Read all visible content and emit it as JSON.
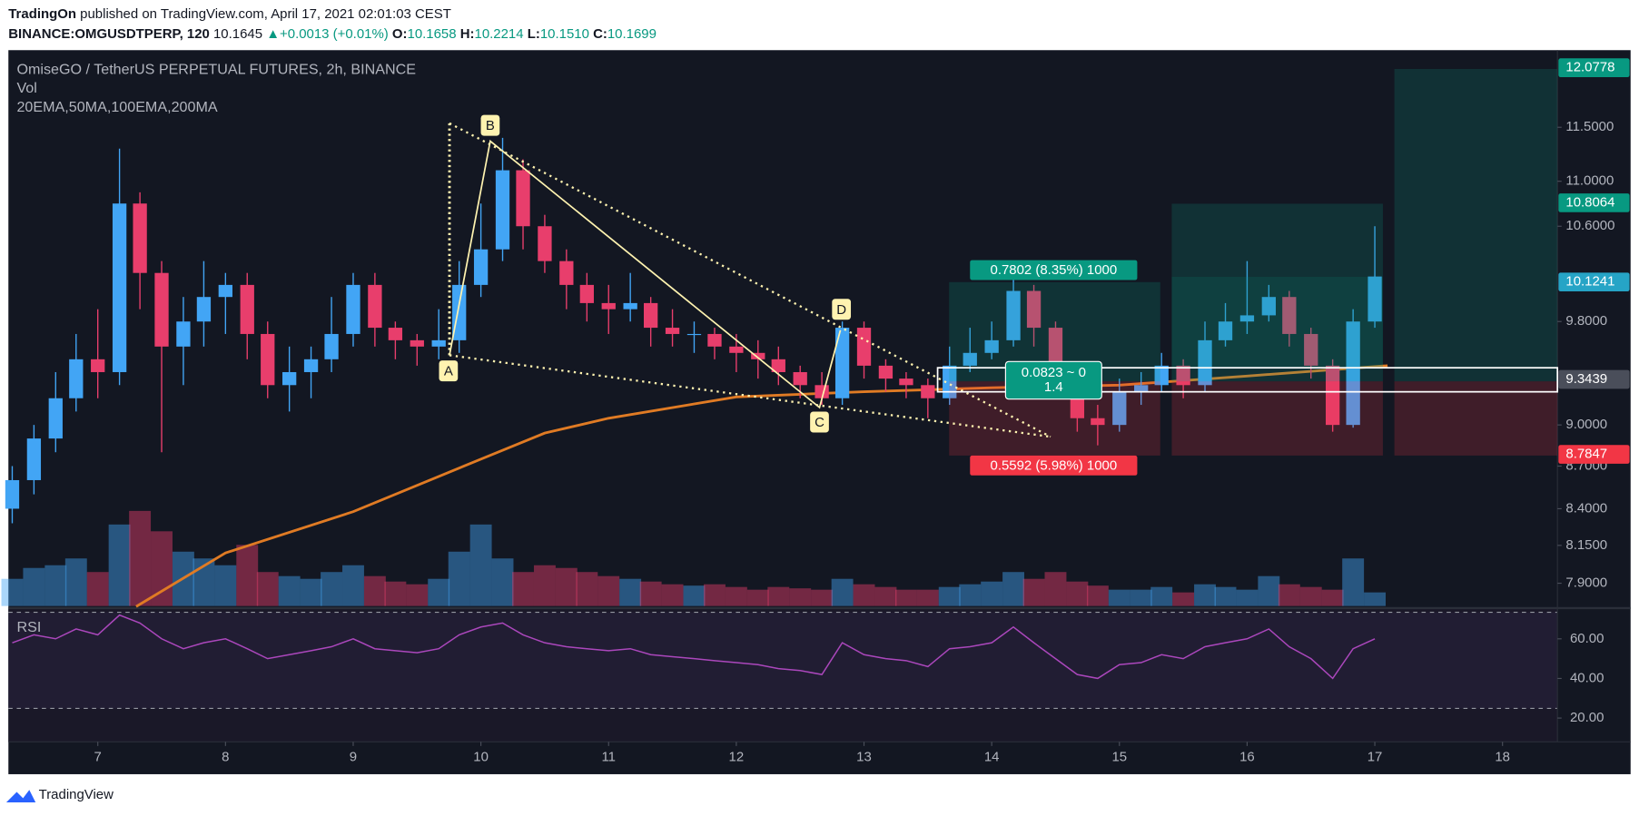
{
  "header": {
    "author": "TradingOn",
    "published": "published on TradingView.com, April 17, 2021 02:01:03 CEST",
    "symbol": "BINANCE:OMGUSDTPERP, 120",
    "last": "10.1645",
    "arrow": "▲",
    "change": "+0.0013 (+0.01%)",
    "o_label": "O:",
    "o": "10.1658",
    "h_label": "H:",
    "h": "10.2214",
    "l_label": "L:",
    "l": "10.1510",
    "c_label": "C:",
    "c": "10.1699"
  },
  "chart_data": [
    {
      "type": "candlestick",
      "title": "OmiseGO / TetherUS PERPETUAL FUTURES, 2h, BINANCE",
      "volume_label": "Vol",
      "ma_label": "20EMA,50MA,100EMA,200MA",
      "x": [
        6.33,
        6.5,
        6.67,
        6.83,
        7.0,
        7.17,
        7.33,
        7.5,
        7.67,
        7.83,
        8.0,
        8.17,
        8.33,
        8.5,
        8.67,
        8.83,
        9.0,
        9.17,
        9.33,
        9.5,
        9.67,
        9.83,
        10.0,
        10.17,
        10.33,
        10.5,
        10.67,
        10.83,
        11.0,
        11.17,
        11.33,
        11.5,
        11.67,
        11.83,
        12.0,
        12.17,
        12.33,
        12.5,
        12.67,
        12.83,
        13.0,
        13.17,
        13.33,
        13.5,
        13.67,
        13.83,
        14.0,
        14.17,
        14.33,
        14.5,
        14.67,
        14.83,
        15.0,
        15.17,
        15.33,
        15.5,
        15.67,
        15.83,
        16.0,
        16.17,
        16.33,
        16.5,
        16.67,
        16.83,
        17.0
      ],
      "open": [
        8.4,
        8.6,
        8.9,
        9.2,
        9.5,
        9.4,
        10.8,
        10.2,
        9.6,
        9.8,
        10.0,
        10.1,
        9.7,
        9.3,
        9.4,
        9.5,
        9.7,
        10.1,
        9.75,
        9.65,
        9.6,
        9.65,
        10.1,
        10.4,
        11.1,
        10.6,
        10.3,
        10.1,
        9.95,
        9.9,
        9.95,
        9.75,
        9.7,
        9.7,
        9.6,
        9.55,
        9.5,
        9.4,
        9.3,
        9.2,
        9.75,
        9.45,
        9.35,
        9.3,
        9.2,
        9.45,
        9.55,
        9.65,
        10.05,
        9.75,
        9.35,
        9.05,
        9.0,
        9.25,
        9.3,
        9.45,
        9.3,
        9.65,
        9.8,
        9.85,
        10.0,
        9.7,
        9.45,
        9.0,
        9.8
      ],
      "high": [
        8.7,
        9.0,
        9.4,
        9.7,
        9.9,
        11.3,
        10.9,
        10.3,
        10.0,
        10.3,
        10.2,
        10.2,
        9.8,
        9.6,
        9.6,
        10.0,
        10.2,
        10.2,
        9.8,
        9.7,
        9.9,
        10.3,
        10.8,
        11.4,
        11.2,
        10.7,
        10.4,
        10.2,
        10.1,
        10.2,
        10.0,
        9.9,
        9.8,
        9.75,
        9.7,
        9.65,
        9.6,
        9.45,
        9.4,
        9.8,
        9.8,
        9.5,
        9.4,
        9.35,
        9.6,
        9.75,
        9.8,
        10.15,
        10.1,
        9.8,
        9.4,
        9.15,
        9.35,
        9.4,
        9.55,
        9.5,
        9.8,
        9.95,
        10.3,
        10.1,
        10.05,
        9.75,
        9.5,
        9.9,
        10.6
      ],
      "low": [
        8.3,
        8.5,
        8.8,
        9.1,
        9.2,
        9.3,
        9.9,
        8.8,
        9.3,
        9.6,
        9.7,
        9.5,
        9.2,
        9.1,
        9.2,
        9.4,
        9.6,
        9.6,
        9.5,
        9.45,
        9.5,
        9.55,
        10.0,
        10.3,
        10.4,
        10.2,
        9.9,
        9.8,
        9.7,
        9.8,
        9.6,
        9.6,
        9.55,
        9.5,
        9.4,
        9.35,
        9.3,
        9.2,
        9.15,
        9.15,
        9.35,
        9.25,
        9.2,
        9.05,
        9.15,
        9.4,
        9.5,
        9.6,
        9.6,
        9.3,
        8.95,
        8.85,
        8.95,
        9.15,
        9.25,
        9.2,
        9.25,
        9.6,
        9.7,
        9.8,
        9.6,
        9.35,
        8.95,
        8.98,
        9.75
      ],
      "close": [
        8.6,
        8.9,
        9.2,
        9.5,
        9.4,
        10.8,
        10.2,
        9.6,
        9.8,
        10.0,
        10.1,
        9.7,
        9.3,
        9.4,
        9.5,
        9.7,
        10.1,
        9.75,
        9.65,
        9.6,
        9.65,
        10.1,
        10.4,
        11.1,
        10.6,
        10.3,
        10.1,
        9.95,
        9.9,
        9.95,
        9.75,
        9.7,
        9.7,
        9.6,
        9.55,
        9.5,
        9.4,
        9.3,
        9.2,
        9.75,
        9.45,
        9.35,
        9.3,
        9.2,
        9.45,
        9.55,
        9.65,
        10.05,
        9.75,
        9.35,
        9.05,
        9.0,
        9.25,
        9.3,
        9.45,
        9.3,
        9.65,
        9.8,
        9.85,
        10.0,
        9.7,
        9.45,
        9.0,
        9.8,
        10.17
      ],
      "volume": [
        20,
        28,
        30,
        35,
        25,
        60,
        70,
        55,
        40,
        35,
        30,
        45,
        25,
        22,
        20,
        25,
        30,
        22,
        18,
        16,
        20,
        40,
        60,
        35,
        25,
        30,
        28,
        25,
        22,
        20,
        18,
        16,
        15,
        16,
        14,
        12,
        14,
        13,
        12,
        20,
        16,
        14,
        12,
        12,
        14,
        16,
        18,
        25,
        20,
        25,
        18,
        15,
        12,
        12,
        14,
        10,
        16,
        14,
        12,
        22,
        16,
        14,
        12,
        35,
        10
      ],
      "up_color": "#42a5f5",
      "down_color": "#e83e6c",
      "ma": {
        "x": [
          7.3,
          8.0,
          9.0,
          10.0,
          10.5,
          11.0,
          12.0,
          13.0,
          14.0,
          15.0,
          16.0,
          17.1
        ],
        "values": [
          7.75,
          8.1,
          8.38,
          8.75,
          8.94,
          9.05,
          9.21,
          9.25,
          9.28,
          9.3,
          9.37,
          9.45
        ],
        "color": "#e07b24"
      },
      "xlim": [
        6.3,
        18.43
      ],
      "xticks": [
        7,
        8,
        9,
        10,
        11,
        12,
        13,
        14,
        15,
        16,
        17,
        18
      ],
      "ylim": [
        7.74,
        12.17
      ],
      "log": true,
      "yticks": [
        {
          "value": 11.5,
          "label": "11.5000"
        },
        {
          "value": 11.0,
          "label": "11.0000"
        },
        {
          "value": 10.6,
          "label": "10.6000"
        },
        {
          "value": 9.8,
          "label": "9.8000"
        },
        {
          "value": 9.0,
          "label": "9.0000"
        },
        {
          "value": 8.7,
          "label": "8.7000"
        },
        {
          "value": 8.4,
          "label": "8.4000"
        },
        {
          "value": 8.15,
          "label": "8.1500"
        },
        {
          "value": 7.9,
          "label": "7.9000"
        }
      ],
      "price_labels": [
        {
          "value": 12.0778,
          "label": "12.0778",
          "color": "#089981"
        },
        {
          "value": 10.8064,
          "label": "10.8064",
          "color": "#089981"
        },
        {
          "value": 10.1241,
          "label": "10.1241",
          "color": "#26a4c6"
        },
        {
          "value": 9.3439,
          "label": "9.3439",
          "color": "#4a4e5a"
        },
        {
          "value": 8.7847,
          "label": "8.7847",
          "color": "#f23645"
        }
      ],
      "annotations": {
        "profit": "0.7802 (8.35%) 1000",
        "loss": "0.5592 (5.98%) 1000",
        "ratio_top": "0.0823 ~ 0",
        "ratio_bottom": "1.4",
        "a": "A",
        "b": "B",
        "c": "C",
        "d": "D"
      }
    },
    {
      "type": "line",
      "title": "RSI",
      "x": [
        6.33,
        6.5,
        6.67,
        6.83,
        7.0,
        7.17,
        7.33,
        7.5,
        7.67,
        7.83,
        8.0,
        8.17,
        8.33,
        8.5,
        8.67,
        8.83,
        9.0,
        9.17,
        9.33,
        9.5,
        9.67,
        9.83,
        10.0,
        10.17,
        10.33,
        10.5,
        10.67,
        10.83,
        11.0,
        11.17,
        11.33,
        11.5,
        11.67,
        11.83,
        12.0,
        12.17,
        12.33,
        12.5,
        12.67,
        12.83,
        13.0,
        13.17,
        13.33,
        13.5,
        13.67,
        13.83,
        14.0,
        14.17,
        14.33,
        14.5,
        14.67,
        14.83,
        15.0,
        15.17,
        15.33,
        15.5,
        15.67,
        15.83,
        16.0,
        16.17,
        16.33,
        16.5,
        16.67,
        16.83,
        17.0
      ],
      "values": [
        58,
        62,
        60,
        65,
        62,
        72,
        68,
        60,
        55,
        58,
        60,
        55,
        50,
        52,
        54,
        56,
        60,
        55,
        54,
        53,
        55,
        62,
        66,
        68,
        62,
        58,
        56,
        55,
        54,
        55,
        52,
        51,
        50,
        49,
        48,
        47,
        45,
        44,
        42,
        58,
        52,
        50,
        49,
        46,
        55,
        56,
        58,
        66,
        58,
        50,
        42,
        40,
        47,
        48,
        52,
        50,
        56,
        58,
        60,
        65,
        56,
        50,
        40,
        55,
        60
      ],
      "color": "#ab47bc",
      "ylim": [
        8,
        75
      ],
      "yticks": [
        {
          "value": 60,
          "label": "60.00"
        },
        {
          "value": 40,
          "label": "40.00"
        },
        {
          "value": 20,
          "label": "20.00"
        }
      ]
    }
  ],
  "footer": "TradingView"
}
